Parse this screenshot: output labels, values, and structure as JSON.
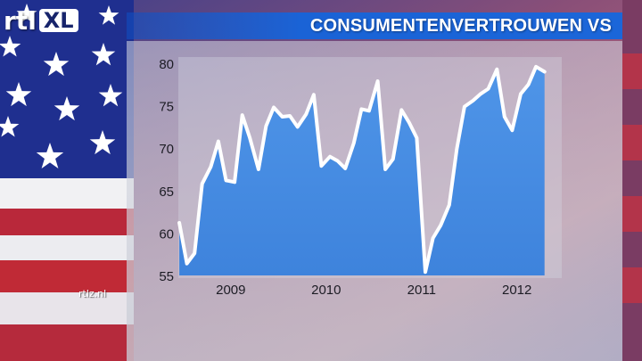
{
  "brand": {
    "logo_left": "rtl",
    "logo_right": "XL",
    "site": "rtlz.nl"
  },
  "title": "CONSUMENTENVERTROUWEN VS",
  "colors": {
    "title_bar": "#1b66d9",
    "area_fill": "#4f95e8",
    "line": "#ffffff",
    "panel": "#c9cdd6",
    "stripe_red": "#c02a36",
    "canton_blue": "#1f2f8f"
  },
  "icons": [
    "star-icon"
  ],
  "chart_data": {
    "type": "area",
    "title": "CONSUMENTENVERTROUWEN VS",
    "xlabel": "",
    "ylabel": "",
    "ylim": [
      55,
      80
    ],
    "yticks": [
      55,
      60,
      65,
      70,
      75,
      80
    ],
    "xlim": [
      2008.45,
      2012.47
    ],
    "xticks": [
      {
        "label": "2009",
        "x": 2009.0
      },
      {
        "label": "2010",
        "x": 2010.0
      },
      {
        "label": "2011",
        "x": 2011.0
      },
      {
        "label": "2012",
        "x": 2012.0
      }
    ],
    "grid": false,
    "legend": "none",
    "series": [
      {
        "x": [
          2008.46,
          2008.54,
          2008.62,
          2008.7,
          2008.79,
          2008.87,
          2008.95,
          2009.04,
          2009.12,
          2009.2,
          2009.29,
          2009.37,
          2009.45,
          2009.54,
          2009.62,
          2009.7,
          2009.79,
          2009.87,
          2009.95,
          2010.04,
          2010.12,
          2010.2,
          2010.29,
          2010.37,
          2010.45,
          2010.54,
          2010.62,
          2010.7,
          2010.79,
          2010.87,
          2010.95,
          2011.04,
          2011.12,
          2011.2,
          2011.29,
          2011.37,
          2011.45,
          2011.54,
          2011.62,
          2011.7,
          2011.79,
          2011.87,
          2011.95,
          2012.04,
          2012.12,
          2012.2,
          2012.29
        ],
        "y": [
          61.2,
          56.4,
          57.6,
          65.8,
          67.8,
          70.8,
          66.2,
          66,
          73.9,
          71.2,
          67.5,
          72.6,
          74.8,
          73.7,
          73.8,
          72.5,
          74,
          76.3,
          67.9,
          69,
          68.5,
          67.6,
          70.6,
          74.6,
          74.4,
          77.9,
          67.5,
          68.7,
          74.5,
          73,
          71.2,
          55.4,
          59.4,
          60.9,
          63.3,
          69.9,
          74.9,
          75.6,
          76.4,
          77,
          79.3,
          73.7,
          72.1,
          76.4,
          77.5,
          79.6,
          79
        ]
      }
    ]
  }
}
